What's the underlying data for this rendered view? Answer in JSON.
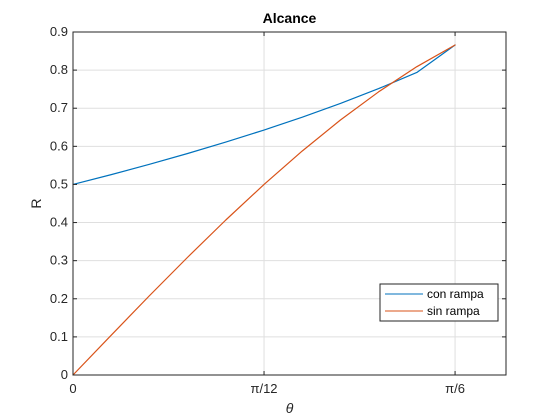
{
  "chart_data": {
    "type": "line",
    "title": "Alcance",
    "xlabel": "θ",
    "ylabel": "R",
    "xlim": [
      0,
      0.5934
    ],
    "ylim": [
      0,
      0.9
    ],
    "x_ticks": [
      {
        "value": 0,
        "label": "0"
      },
      {
        "value": 0.2618,
        "label": "π/12"
      },
      {
        "value": 0.5236,
        "label": "π/6"
      }
    ],
    "y_ticks": [
      {
        "value": 0,
        "label": "0"
      },
      {
        "value": 0.1,
        "label": "0.1"
      },
      {
        "value": 0.2,
        "label": "0.2"
      },
      {
        "value": 0.3,
        "label": "0.3"
      },
      {
        "value": 0.4,
        "label": "0.4"
      },
      {
        "value": 0.5,
        "label": "0.5"
      },
      {
        "value": 0.6,
        "label": "0.6"
      },
      {
        "value": 0.7,
        "label": "0.7"
      },
      {
        "value": 0.8,
        "label": "0.8"
      },
      {
        "value": 0.9,
        "label": "0.9"
      }
    ],
    "grid": true,
    "legend_position": "bottom-right",
    "series": [
      {
        "name": "con rampa",
        "color": "#0072BD",
        "x": [
          0,
          0.0524,
          0.1047,
          0.1571,
          0.2094,
          0.2618,
          0.3142,
          0.3665,
          0.4189,
          0.4712,
          0.5236
        ],
        "y": [
          0.5,
          0.5258,
          0.5528,
          0.5812,
          0.6111,
          0.6428,
          0.6765,
          0.7126,
          0.7515,
          0.7938,
          0.866
        ]
      },
      {
        "name": "sin rampa",
        "color": "#D95319",
        "x": [
          0,
          0.0524,
          0.1047,
          0.1571,
          0.2094,
          0.2618,
          0.3142,
          0.3665,
          0.4189,
          0.4712,
          0.5236
        ],
        "y": [
          0,
          0.1045,
          0.2079,
          0.309,
          0.4067,
          0.5,
          0.5878,
          0.6691,
          0.7431,
          0.809,
          0.866
        ]
      }
    ]
  }
}
